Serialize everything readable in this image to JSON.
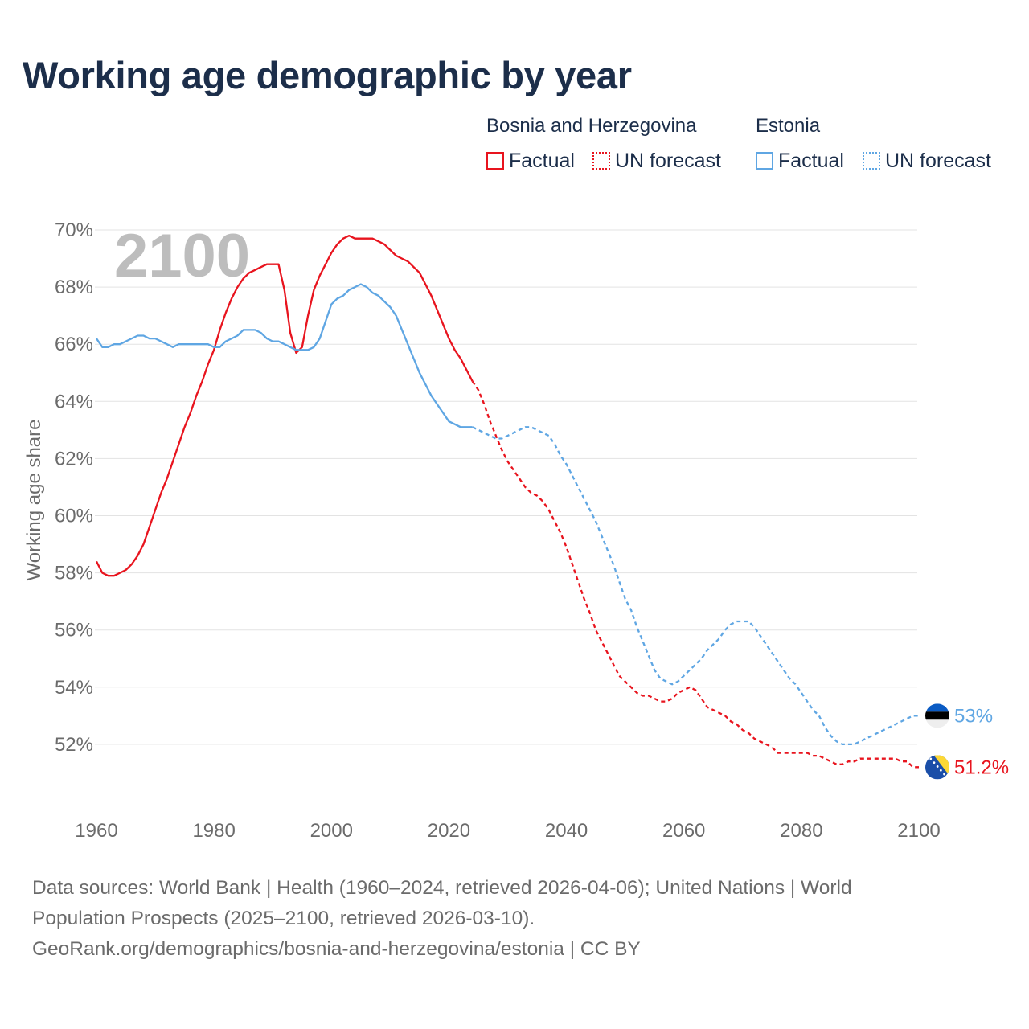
{
  "title": "Working age demographic by year",
  "legend": {
    "groups": [
      {
        "name": "Bosnia and Herzegovina",
        "factual_label": "Factual",
        "forecast_label": "UN forecast"
      },
      {
        "name": "Estonia",
        "factual_label": "Factual",
        "forecast_label": "UN forecast"
      }
    ]
  },
  "year_overlay": "2100",
  "source": {
    "line1": "Data sources: World Bank | Health (1960–2024, retrieved 2026-04-06); United Nations | World Population Prospects (2025–2100, retrieved 2026-03-10).",
    "line2": "GeoRank.org/demographics/bosnia-and-herzegovina/estonia | CC BY"
  },
  "chart_data": {
    "type": "line",
    "title": "Working age demographic by year",
    "xlabel": "",
    "ylabel": "Working age share",
    "xlim": [
      1960,
      2100
    ],
    "ylim": [
      50,
      70
    ],
    "x_ticks": [
      1960,
      1980,
      2000,
      2020,
      2040,
      2060,
      2080,
      2100
    ],
    "y_ticks": [
      52,
      54,
      56,
      58,
      60,
      62,
      64,
      66,
      68,
      70
    ],
    "y_tick_labels": [
      "52%",
      "54%",
      "56%",
      "58%",
      "60%",
      "62%",
      "64%",
      "66%",
      "68%",
      "70%"
    ],
    "x_tick_labels": [
      "1960",
      "1980",
      "2000",
      "2020",
      "2040",
      "2060",
      "2080",
      "2100"
    ],
    "grid": "horizontal",
    "forecast_start_year": 2024,
    "series": [
      {
        "name": "Bosnia and Herzegovina",
        "color": "#e8141e",
        "end_label": "51.2%",
        "flag": "bosnia-and-herzegovina-flag",
        "points": [
          [
            1960,
            58.4
          ],
          [
            1961,
            58.0
          ],
          [
            1962,
            57.9
          ],
          [
            1963,
            57.9
          ],
          [
            1964,
            58.0
          ],
          [
            1965,
            58.1
          ],
          [
            1966,
            58.3
          ],
          [
            1967,
            58.6
          ],
          [
            1968,
            59.0
          ],
          [
            1969,
            59.6
          ],
          [
            1970,
            60.2
          ],
          [
            1971,
            60.8
          ],
          [
            1972,
            61.3
          ],
          [
            1973,
            61.9
          ],
          [
            1974,
            62.5
          ],
          [
            1975,
            63.1
          ],
          [
            1976,
            63.6
          ],
          [
            1977,
            64.2
          ],
          [
            1978,
            64.7
          ],
          [
            1979,
            65.3
          ],
          [
            1980,
            65.8
          ],
          [
            1981,
            66.5
          ],
          [
            1982,
            67.1
          ],
          [
            1983,
            67.6
          ],
          [
            1984,
            68.0
          ],
          [
            1985,
            68.3
          ],
          [
            1986,
            68.5
          ],
          [
            1987,
            68.6
          ],
          [
            1988,
            68.7
          ],
          [
            1989,
            68.8
          ],
          [
            1990,
            68.8
          ],
          [
            1991,
            68.8
          ],
          [
            1992,
            67.9
          ],
          [
            1993,
            66.4
          ],
          [
            1994,
            65.7
          ],
          [
            1995,
            65.9
          ],
          [
            1996,
            67.0
          ],
          [
            1997,
            67.9
          ],
          [
            1998,
            68.4
          ],
          [
            1999,
            68.8
          ],
          [
            2000,
            69.2
          ],
          [
            2001,
            69.5
          ],
          [
            2002,
            69.7
          ],
          [
            2003,
            69.8
          ],
          [
            2004,
            69.7
          ],
          [
            2005,
            69.7
          ],
          [
            2006,
            69.7
          ],
          [
            2007,
            69.7
          ],
          [
            2008,
            69.6
          ],
          [
            2009,
            69.5
          ],
          [
            2010,
            69.3
          ],
          [
            2011,
            69.1
          ],
          [
            2012,
            69.0
          ],
          [
            2013,
            68.9
          ],
          [
            2014,
            68.7
          ],
          [
            2015,
            68.5
          ],
          [
            2016,
            68.1
          ],
          [
            2017,
            67.7
          ],
          [
            2018,
            67.2
          ],
          [
            2019,
            66.7
          ],
          [
            2020,
            66.2
          ],
          [
            2021,
            65.8
          ],
          [
            2022,
            65.5
          ],
          [
            2023,
            65.1
          ],
          [
            2024,
            64.7
          ],
          [
            2025,
            64.4
          ],
          [
            2026,
            63.9
          ],
          [
            2027,
            63.3
          ],
          [
            2028,
            62.8
          ],
          [
            2029,
            62.3
          ],
          [
            2030,
            61.9
          ],
          [
            2031,
            61.6
          ],
          [
            2032,
            61.3
          ],
          [
            2033,
            61.0
          ],
          [
            2034,
            60.8
          ],
          [
            2035,
            60.7
          ],
          [
            2036,
            60.5
          ],
          [
            2037,
            60.2
          ],
          [
            2038,
            59.8
          ],
          [
            2039,
            59.4
          ],
          [
            2040,
            58.9
          ],
          [
            2041,
            58.3
          ],
          [
            2042,
            57.7
          ],
          [
            2043,
            57.1
          ],
          [
            2044,
            56.6
          ],
          [
            2045,
            56.0
          ],
          [
            2046,
            55.6
          ],
          [
            2047,
            55.2
          ],
          [
            2048,
            54.8
          ],
          [
            2049,
            54.4
          ],
          [
            2050,
            54.2
          ],
          [
            2051,
            54.0
          ],
          [
            2052,
            53.8
          ],
          [
            2053,
            53.7
          ],
          [
            2054,
            53.7
          ],
          [
            2055,
            53.6
          ],
          [
            2056,
            53.5
          ],
          [
            2057,
            53.5
          ],
          [
            2058,
            53.6
          ],
          [
            2059,
            53.8
          ],
          [
            2060,
            53.9
          ],
          [
            2061,
            54.0
          ],
          [
            2062,
            53.9
          ],
          [
            2063,
            53.6
          ],
          [
            2064,
            53.3
          ],
          [
            2065,
            53.2
          ],
          [
            2066,
            53.1
          ],
          [
            2067,
            53.0
          ],
          [
            2068,
            52.8
          ],
          [
            2069,
            52.7
          ],
          [
            2070,
            52.5
          ],
          [
            2071,
            52.4
          ],
          [
            2072,
            52.2
          ],
          [
            2073,
            52.1
          ],
          [
            2074,
            52.0
          ],
          [
            2075,
            51.9
          ],
          [
            2076,
            51.7
          ],
          [
            2077,
            51.7
          ],
          [
            2078,
            51.7
          ],
          [
            2079,
            51.7
          ],
          [
            2080,
            51.7
          ],
          [
            2081,
            51.7
          ],
          [
            2082,
            51.6
          ],
          [
            2083,
            51.6
          ],
          [
            2084,
            51.5
          ],
          [
            2085,
            51.4
          ],
          [
            2086,
            51.3
          ],
          [
            2087,
            51.3
          ],
          [
            2088,
            51.4
          ],
          [
            2089,
            51.4
          ],
          [
            2090,
            51.5
          ],
          [
            2091,
            51.5
          ],
          [
            2092,
            51.5
          ],
          [
            2093,
            51.5
          ],
          [
            2094,
            51.5
          ],
          [
            2095,
            51.5
          ],
          [
            2096,
            51.5
          ],
          [
            2097,
            51.4
          ],
          [
            2098,
            51.4
          ],
          [
            2099,
            51.2
          ],
          [
            2100,
            51.2
          ]
        ]
      },
      {
        "name": "Estonia",
        "color": "#5fa6e3",
        "end_label": "53%",
        "flag": "estonia-flag",
        "points": [
          [
            1960,
            66.2
          ],
          [
            1961,
            65.9
          ],
          [
            1962,
            65.9
          ],
          [
            1963,
            66.0
          ],
          [
            1964,
            66.0
          ],
          [
            1965,
            66.1
          ],
          [
            1966,
            66.2
          ],
          [
            1967,
            66.3
          ],
          [
            1968,
            66.3
          ],
          [
            1969,
            66.2
          ],
          [
            1970,
            66.2
          ],
          [
            1971,
            66.1
          ],
          [
            1972,
            66.0
          ],
          [
            1973,
            65.9
          ],
          [
            1974,
            66.0
          ],
          [
            1975,
            66.0
          ],
          [
            1976,
            66.0
          ],
          [
            1977,
            66.0
          ],
          [
            1978,
            66.0
          ],
          [
            1979,
            66.0
          ],
          [
            1980,
            65.9
          ],
          [
            1981,
            65.9
          ],
          [
            1982,
            66.1
          ],
          [
            1983,
            66.2
          ],
          [
            1984,
            66.3
          ],
          [
            1985,
            66.5
          ],
          [
            1986,
            66.5
          ],
          [
            1987,
            66.5
          ],
          [
            1988,
            66.4
          ],
          [
            1989,
            66.2
          ],
          [
            1990,
            66.1
          ],
          [
            1991,
            66.1
          ],
          [
            1992,
            66.0
          ],
          [
            1993,
            65.9
          ],
          [
            1994,
            65.8
          ],
          [
            1995,
            65.8
          ],
          [
            1996,
            65.8
          ],
          [
            1997,
            65.9
          ],
          [
            1998,
            66.2
          ],
          [
            1999,
            66.8
          ],
          [
            2000,
            67.4
          ],
          [
            2001,
            67.6
          ],
          [
            2002,
            67.7
          ],
          [
            2003,
            67.9
          ],
          [
            2004,
            68.0
          ],
          [
            2005,
            68.1
          ],
          [
            2006,
            68.0
          ],
          [
            2007,
            67.8
          ],
          [
            2008,
            67.7
          ],
          [
            2009,
            67.5
          ],
          [
            2010,
            67.3
          ],
          [
            2011,
            67.0
          ],
          [
            2012,
            66.5
          ],
          [
            2013,
            66.0
          ],
          [
            2014,
            65.5
          ],
          [
            2015,
            65.0
          ],
          [
            2016,
            64.6
          ],
          [
            2017,
            64.2
          ],
          [
            2018,
            63.9
          ],
          [
            2019,
            63.6
          ],
          [
            2020,
            63.3
          ],
          [
            2021,
            63.2
          ],
          [
            2022,
            63.1
          ],
          [
            2023,
            63.1
          ],
          [
            2024,
            63.1
          ],
          [
            2025,
            63.0
          ],
          [
            2026,
            62.9
          ],
          [
            2027,
            62.8
          ],
          [
            2028,
            62.7
          ],
          [
            2029,
            62.7
          ],
          [
            2030,
            62.8
          ],
          [
            2031,
            62.9
          ],
          [
            2032,
            63.0
          ],
          [
            2033,
            63.1
          ],
          [
            2034,
            63.1
          ],
          [
            2035,
            63.0
          ],
          [
            2036,
            62.9
          ],
          [
            2037,
            62.8
          ],
          [
            2038,
            62.5
          ],
          [
            2039,
            62.1
          ],
          [
            2040,
            61.8
          ],
          [
            2041,
            61.4
          ],
          [
            2042,
            61.0
          ],
          [
            2043,
            60.6
          ],
          [
            2044,
            60.2
          ],
          [
            2045,
            59.8
          ],
          [
            2046,
            59.3
          ],
          [
            2047,
            58.8
          ],
          [
            2048,
            58.3
          ],
          [
            2049,
            57.7
          ],
          [
            2050,
            57.1
          ],
          [
            2051,
            56.7
          ],
          [
            2052,
            56.1
          ],
          [
            2053,
            55.6
          ],
          [
            2054,
            55.1
          ],
          [
            2055,
            54.6
          ],
          [
            2056,
            54.3
          ],
          [
            2057,
            54.2
          ],
          [
            2058,
            54.1
          ],
          [
            2059,
            54.2
          ],
          [
            2060,
            54.4
          ],
          [
            2061,
            54.6
          ],
          [
            2062,
            54.8
          ],
          [
            2063,
            55.0
          ],
          [
            2064,
            55.3
          ],
          [
            2065,
            55.5
          ],
          [
            2066,
            55.7
          ],
          [
            2067,
            56.0
          ],
          [
            2068,
            56.2
          ],
          [
            2069,
            56.3
          ],
          [
            2070,
            56.3
          ],
          [
            2071,
            56.3
          ],
          [
            2072,
            56.1
          ],
          [
            2073,
            55.8
          ],
          [
            2074,
            55.5
          ],
          [
            2075,
            55.2
          ],
          [
            2076,
            54.9
          ],
          [
            2077,
            54.6
          ],
          [
            2078,
            54.3
          ],
          [
            2079,
            54.1
          ],
          [
            2080,
            53.8
          ],
          [
            2081,
            53.5
          ],
          [
            2082,
            53.2
          ],
          [
            2083,
            53.0
          ],
          [
            2084,
            52.6
          ],
          [
            2085,
            52.3
          ],
          [
            2086,
            52.1
          ],
          [
            2087,
            52.0
          ],
          [
            2088,
            52.0
          ],
          [
            2089,
            52.0
          ],
          [
            2090,
            52.1
          ],
          [
            2091,
            52.2
          ],
          [
            2092,
            52.3
          ],
          [
            2093,
            52.4
          ],
          [
            2094,
            52.5
          ],
          [
            2095,
            52.6
          ],
          [
            2096,
            52.7
          ],
          [
            2097,
            52.8
          ],
          [
            2098,
            52.9
          ],
          [
            2099,
            53.0
          ],
          [
            2100,
            53.0
          ]
        ]
      }
    ]
  }
}
